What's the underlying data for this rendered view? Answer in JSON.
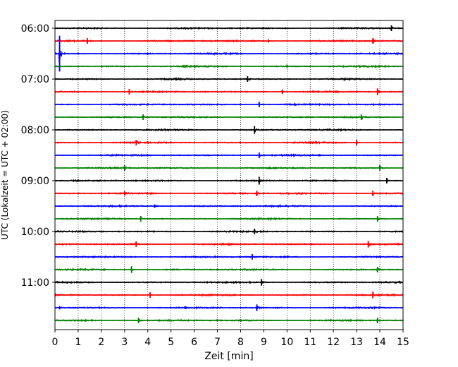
{
  "chart_data": {
    "type": "line",
    "subtype": "helicorder",
    "title": "",
    "xlabel": "Zeit  [min]",
    "ylabel": "UTC (Lokalzeit = UTC + 02:00)",
    "xlim": [
      0,
      15
    ],
    "x_ticks": [
      0,
      1,
      2,
      3,
      4,
      5,
      6,
      7,
      8,
      9,
      10,
      11,
      12,
      13,
      14,
      15
    ],
    "x_tick_labels": [
      "0",
      "1",
      "2",
      "3",
      "4",
      "5",
      "6",
      "7",
      "8",
      "9",
      "10",
      "11",
      "12",
      "13",
      "14",
      "15"
    ],
    "y_tick_labels": [
      {
        "trace_index": 0,
        "label": "06:00"
      },
      {
        "trace_index": 4,
        "label": "07:00"
      },
      {
        "trace_index": 8,
        "label": "08:00"
      },
      {
        "trace_index": 12,
        "label": "09:00"
      },
      {
        "trace_index": 16,
        "label": "10:00"
      },
      {
        "trace_index": 20,
        "label": "11:00"
      }
    ],
    "trace_interval_minutes": 15,
    "trace_count": 24,
    "trace_colors": [
      "#000000",
      "#ff0000",
      "#0000ff",
      "#008000"
    ],
    "grid": {
      "x": true,
      "y": false,
      "style": "dotted"
    },
    "traces": [
      {
        "index": 0,
        "events": [
          [
            14.5,
            0.5
          ]
        ]
      },
      {
        "index": 1,
        "events": [
          [
            1.4,
            0.5
          ],
          [
            9.2,
            0.3
          ],
          [
            13.7,
            0.5
          ]
        ]
      },
      {
        "index": 2,
        "events": [
          [
            0.2,
            3.2
          ]
        ]
      },
      {
        "index": 3,
        "events": [
          [
            10.0,
            0.3
          ]
        ]
      },
      {
        "index": 4,
        "events": [
          [
            8.3,
            0.5
          ]
        ]
      },
      {
        "index": 5,
        "events": [
          [
            3.2,
            0.5
          ],
          [
            9.8,
            0.4
          ],
          [
            13.9,
            0.6
          ]
        ]
      },
      {
        "index": 6,
        "events": [
          [
            8.8,
            0.5
          ]
        ]
      },
      {
        "index": 7,
        "events": [
          [
            3.8,
            0.5
          ],
          [
            13.2,
            0.5
          ]
        ]
      },
      {
        "index": 8,
        "events": [
          [
            8.6,
            0.7
          ]
        ]
      },
      {
        "index": 9,
        "events": [
          [
            3.5,
            0.5
          ],
          [
            13.0,
            0.5
          ]
        ]
      },
      {
        "index": 10,
        "events": [
          [
            8.8,
            0.5
          ]
        ]
      },
      {
        "index": 11,
        "events": [
          [
            3.0,
            0.5
          ],
          [
            14.0,
            0.5
          ]
        ]
      },
      {
        "index": 12,
        "events": [
          [
            8.8,
            0.7
          ],
          [
            14.3,
            0.5
          ]
        ]
      },
      {
        "index": 13,
        "events": [
          [
            3.0,
            0.4
          ],
          [
            8.7,
            0.5
          ],
          [
            13.7,
            0.5
          ]
        ]
      },
      {
        "index": 14,
        "events": [
          [
            4.3,
            0.3
          ]
        ]
      },
      {
        "index": 15,
        "events": [
          [
            3.7,
            0.5
          ],
          [
            13.9,
            0.5
          ]
        ]
      },
      {
        "index": 16,
        "events": [
          [
            8.6,
            0.5
          ]
        ]
      },
      {
        "index": 17,
        "events": [
          [
            3.5,
            0.5
          ],
          [
            13.5,
            0.6
          ]
        ]
      },
      {
        "index": 18,
        "events": [
          [
            8.5,
            0.5
          ]
        ]
      },
      {
        "index": 19,
        "events": [
          [
            3.3,
            0.6
          ],
          [
            13.9,
            0.5
          ]
        ]
      },
      {
        "index": 20,
        "events": [
          [
            8.9,
            0.6
          ]
        ]
      },
      {
        "index": 21,
        "events": [
          [
            4.1,
            0.5
          ],
          [
            13.7,
            0.6
          ]
        ]
      },
      {
        "index": 22,
        "events": [
          [
            0.2,
            0.3
          ],
          [
            8.7,
            0.6
          ]
        ]
      },
      {
        "index": 23,
        "events": [
          [
            3.6,
            0.5
          ],
          [
            13.9,
            0.5
          ]
        ]
      }
    ]
  }
}
